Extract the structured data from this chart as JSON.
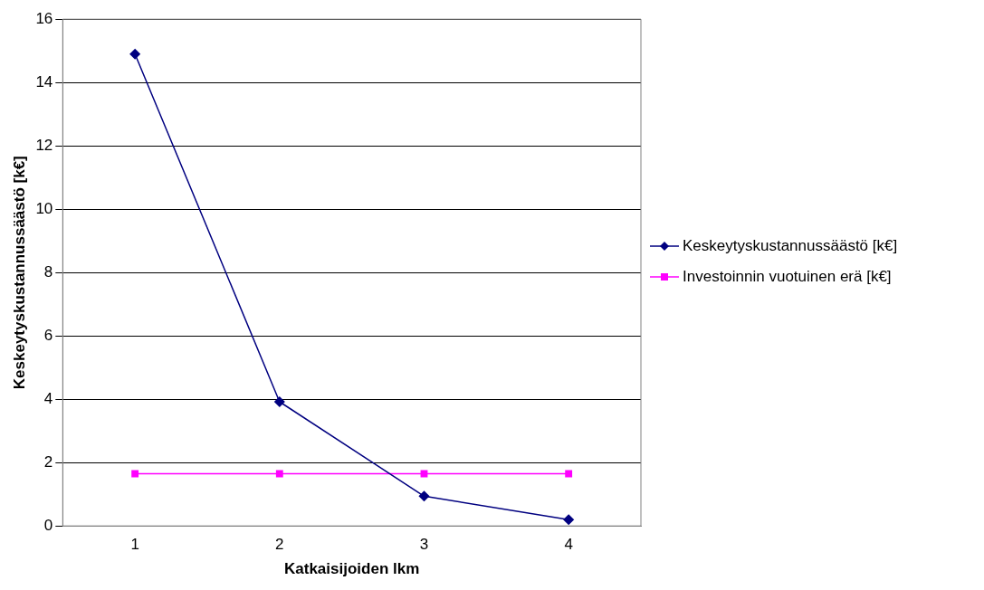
{
  "chart_data": {
    "type": "line",
    "xlabel": "Katkaisijoiden lkm",
    "ylabel": "Keskeytyskustannussäästö [k€]",
    "categories": [
      "1",
      "2",
      "3",
      "4"
    ],
    "series": [
      {
        "name": "Keskeytyskustannussäästö [k€]",
        "color": "#000080",
        "values": [
          14.9,
          3.92,
          0.94,
          0.2
        ],
        "marker": "diamond"
      },
      {
        "name": "Investoinnin vuotuinen erä [k€]",
        "color": "#ff00ff",
        "values": [
          1.65,
          1.65,
          1.65,
          1.65
        ],
        "marker": "square"
      }
    ],
    "ylim": [
      0,
      16
    ],
    "yticks": [
      0,
      2,
      4,
      6,
      8,
      10,
      12,
      14,
      16
    ],
    "grid": "y",
    "legend": "right",
    "line_style": "solid"
  }
}
